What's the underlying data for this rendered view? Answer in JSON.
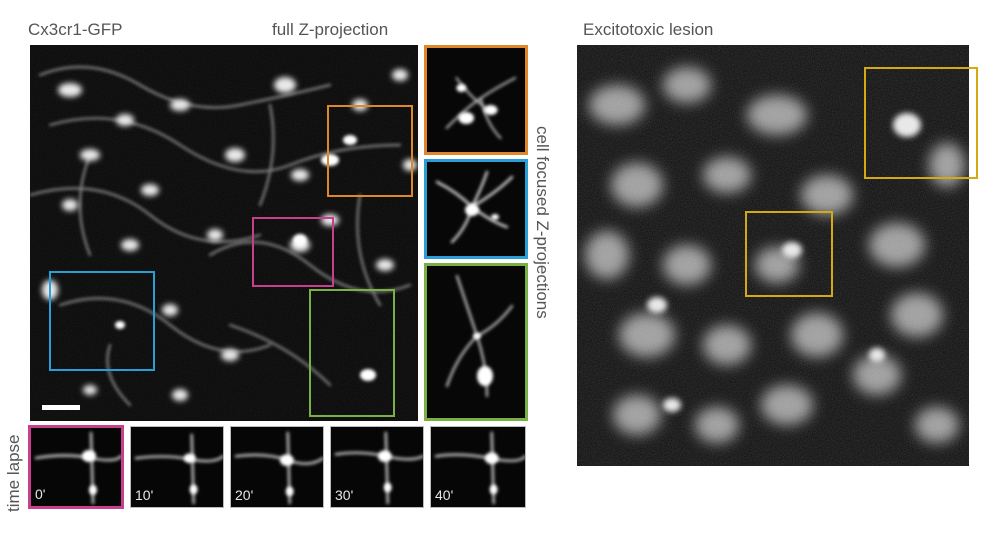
{
  "left_panel": {
    "title": "Cx3cr1-GFP",
    "subtitle": "full Z-projection"
  },
  "side_column": {
    "label": "cell focused Z-projections"
  },
  "time_lapse": {
    "label": "time lapse",
    "frames": [
      "0'",
      "10'",
      "20'",
      "30'",
      "40'"
    ]
  },
  "right_panel": {
    "title": "Excitotoxic lesion"
  },
  "colors": {
    "orange": "#e0872b",
    "blue": "#2a9ed6",
    "magenta": "#c83f8e",
    "green": "#7bb045",
    "yellow": "#d4a914",
    "scale_bar": "#ffffff"
  }
}
